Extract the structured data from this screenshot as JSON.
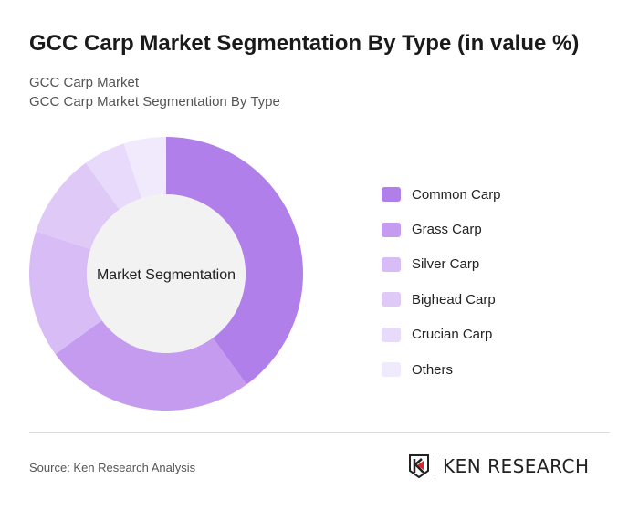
{
  "title": "GCC Carp Market Segmentation By Type (in value %)",
  "subtitle1": "GCC Carp Market",
  "subtitle2": "GCC Carp Market Segmentation By Type",
  "chart_data": {
    "type": "pie",
    "donut": true,
    "center_label": "Market Segmentation",
    "categories": [
      "Common Carp",
      "Grass Carp",
      "Silver Carp",
      "Bighead Carp",
      "Crucian Carp",
      "Others"
    ],
    "values": [
      40,
      25,
      15,
      10,
      5,
      5
    ],
    "colors": [
      "#b07fea",
      "#c49bef",
      "#d7bcf5",
      "#dfc9f6",
      "#e8dafa",
      "#f1eafc"
    ],
    "center_color": "#f2f2f2",
    "legend_position": "right"
  },
  "source": "Source: Ken Research Analysis",
  "logo_text": "KEN RESEARCH"
}
